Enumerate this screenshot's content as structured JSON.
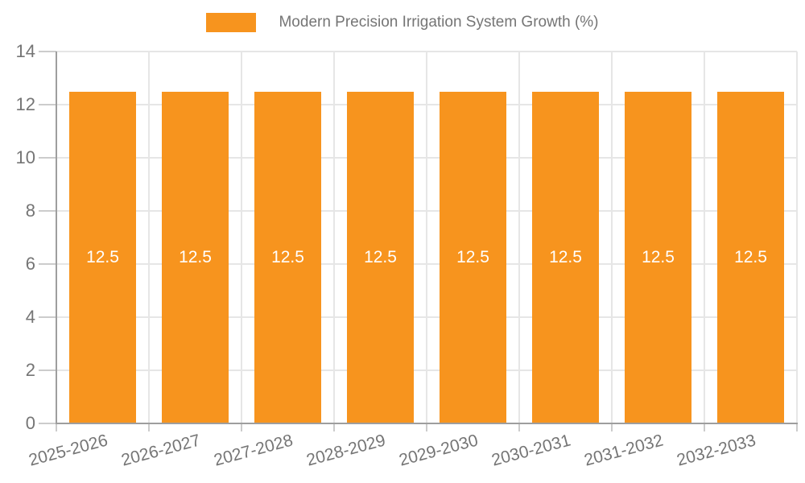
{
  "legend": {
    "label": "Modern Precision Irrigation System Growth (%)",
    "swatch_color": "#F7941E"
  },
  "chart_data": {
    "type": "bar",
    "title": "Modern Precision Irrigation System Growth (%)",
    "categories": [
      "2025-2026",
      "2026-2027",
      "2027-2028",
      "2028-2029",
      "2029-2030",
      "2030-2031",
      "2031-2032",
      "2032-2033"
    ],
    "values": [
      12.5,
      12.5,
      12.5,
      12.5,
      12.5,
      12.5,
      12.5,
      12.5
    ],
    "value_labels": [
      "12.5",
      "12.5",
      "12.5",
      "12.5",
      "12.5",
      "12.5",
      "12.5",
      "12.5"
    ],
    "series": [
      {
        "name": "Modern Precision Irrigation System Growth (%)",
        "values": [
          12.5,
          12.5,
          12.5,
          12.5,
          12.5,
          12.5,
          12.5,
          12.5
        ]
      }
    ],
    "xlabel": "",
    "ylabel": "",
    "ylim": [
      0,
      14
    ],
    "y_ticks": [
      0,
      2,
      4,
      6,
      8,
      10,
      12,
      14
    ],
    "grid": true,
    "legend_position": "top",
    "x_label_rotation_deg": -15,
    "style": {
      "bar_color": "#F7941E",
      "axis_color": "#9e9e9e",
      "gridline_color": "#e6e6e6",
      "tick_color": "#cccccc",
      "label_color": "#757575",
      "value_label_color": "#ffffff",
      "background_color": "#ffffff"
    }
  }
}
